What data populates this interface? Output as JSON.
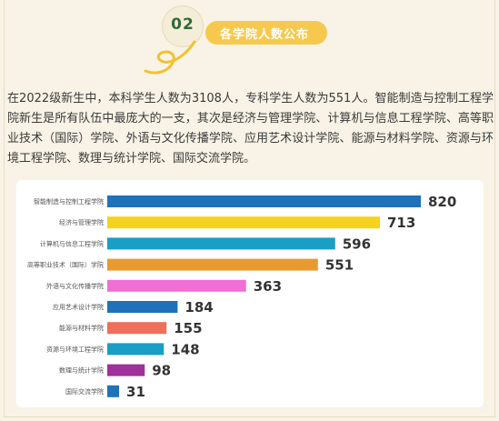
{
  "section": {
    "number": "02",
    "title": "各学院人数公布"
  },
  "intro_text": "在2022级新生中，本科学生人数为3108人，专科学生人数为551人。智能制造与控制工程学院新生是所有队伍中最庞大的一支，其次是经济与管理学院、计算机与信息工程学院、高等职业技术（国际）学院、外语与文化传播学院、应用艺术设计学院、能源与材料学院、资源与环境工程学院、数理与统计学院、国际交流学院。",
  "colors": {
    "background": "#f8f3e6",
    "badge_pill": "#f6c94e",
    "badge_number": "#2f6a3b",
    "squiggle": "#f2c230"
  },
  "chart_data": {
    "type": "bar",
    "orientation": "horizontal",
    "categories": [
      "智能制造与控制工程学院",
      "经济与管理学院",
      "计算机与信息工程学院",
      "高等职业技术（国际）学院",
      "外语与文化传播学院",
      "应用艺术设计学院",
      "能源与材料学院",
      "资源与环境工程学院",
      "数理与统计学院",
      "国际交流学院"
    ],
    "values": [
      820,
      713,
      596,
      551,
      363,
      184,
      155,
      148,
      98,
      31
    ],
    "colors": [
      "#1f72b8",
      "#f5d21b",
      "#1a9ec4",
      "#e89a30",
      "#ef6fd5",
      "#1f72b8",
      "#ee6f5b",
      "#1a9ec4",
      "#a0309a",
      "#1f72b8"
    ],
    "xlim": [
      0,
      820
    ],
    "grid": false,
    "data_labels": true
  }
}
